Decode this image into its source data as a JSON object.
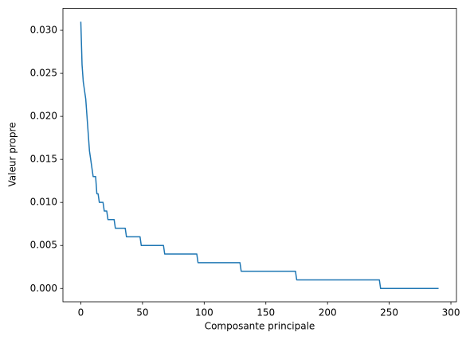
{
  "chart_data": {
    "type": "line",
    "xlabel": "Composante principale",
    "ylabel": "Valeur propre",
    "x": [
      0,
      1,
      2,
      3,
      4,
      5,
      6,
      7,
      8,
      9,
      10,
      12,
      13,
      14,
      15,
      18,
      19,
      21,
      22,
      27,
      28,
      36,
      37,
      48,
      49,
      67,
      68,
      94,
      95,
      129,
      130,
      174,
      175,
      242,
      243,
      290
    ],
    "series": [
      {
        "color": "#1f77b4",
        "values": [
          0.031,
          0.026,
          0.024,
          0.023,
          0.022,
          0.02,
          0.018,
          0.016,
          0.015,
          0.014,
          0.013,
          0.013,
          0.011,
          0.011,
          0.01,
          0.01,
          0.009,
          0.009,
          0.008,
          0.008,
          0.007,
          0.007,
          0.006,
          0.006,
          0.005,
          0.005,
          0.004,
          0.004,
          0.003,
          0.003,
          0.002,
          0.002,
          0.001,
          0.001,
          0,
          0
        ]
      }
    ],
    "xlim": [
      -14.5,
      304.5
    ],
    "ylim": [
      -0.00155,
      0.03255
    ],
    "xticks": [
      0,
      50,
      100,
      150,
      200,
      250,
      300
    ],
    "yticks": [
      {
        "value": 0,
        "label": "0.000"
      },
      {
        "value": 0.005,
        "label": "0.005"
      },
      {
        "value": 0.01,
        "label": "0.010"
      },
      {
        "value": 0.015,
        "label": "0.015"
      },
      {
        "value": 0.02,
        "label": "0.020"
      },
      {
        "value": 0.025,
        "label": "0.025"
      },
      {
        "value": 0.03,
        "label": "0.030"
      }
    ],
    "grid": false
  }
}
